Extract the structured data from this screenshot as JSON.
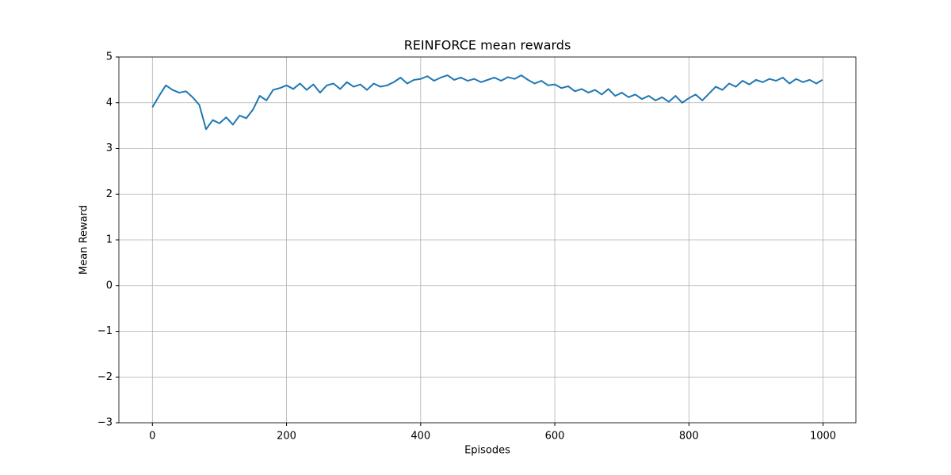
{
  "chart_data": {
    "type": "line",
    "title": "REINFORCE mean rewards",
    "xlabel": "Episodes",
    "ylabel": "Mean Reward",
    "x": [
      0,
      10,
      20,
      30,
      40,
      50,
      60,
      70,
      80,
      90,
      100,
      110,
      120,
      130,
      140,
      150,
      160,
      170,
      180,
      190,
      200,
      210,
      220,
      230,
      240,
      250,
      260,
      270,
      280,
      290,
      300,
      310,
      320,
      330,
      340,
      350,
      360,
      370,
      380,
      390,
      400,
      410,
      420,
      430,
      440,
      450,
      460,
      470,
      480,
      490,
      500,
      510,
      520,
      530,
      540,
      550,
      560,
      570,
      580,
      590,
      600,
      610,
      620,
      630,
      640,
      650,
      660,
      670,
      680,
      690,
      700,
      710,
      720,
      730,
      740,
      750,
      760,
      770,
      780,
      790,
      800,
      810,
      820,
      830,
      840,
      850,
      860,
      870,
      880,
      890,
      900,
      910,
      920,
      930,
      940,
      950,
      960,
      970,
      980,
      990,
      999
    ],
    "values": [
      3.9,
      4.15,
      4.38,
      4.28,
      4.22,
      4.25,
      4.12,
      3.95,
      3.42,
      3.62,
      3.55,
      3.68,
      3.52,
      3.72,
      3.66,
      3.85,
      4.15,
      4.05,
      4.28,
      4.32,
      4.38,
      4.3,
      4.42,
      4.28,
      4.4,
      4.22,
      4.38,
      4.42,
      4.3,
      4.45,
      4.35,
      4.4,
      4.28,
      4.42,
      4.35,
      4.38,
      4.45,
      4.55,
      4.42,
      4.5,
      4.52,
      4.58,
      4.48,
      4.55,
      4.6,
      4.5,
      4.55,
      4.48,
      4.52,
      4.45,
      4.5,
      4.55,
      4.48,
      4.56,
      4.52,
      4.6,
      4.5,
      4.42,
      4.48,
      4.38,
      4.4,
      4.32,
      4.36,
      4.25,
      4.3,
      4.22,
      4.28,
      4.18,
      4.3,
      4.15,
      4.22,
      4.12,
      4.18,
      4.08,
      4.15,
      4.05,
      4.12,
      4.02,
      4.15,
      4.0,
      4.1,
      4.18,
      4.05,
      4.2,
      4.35,
      4.28,
      4.42,
      4.35,
      4.48,
      4.4,
      4.5,
      4.45,
      4.52,
      4.48,
      4.55,
      4.42,
      4.52,
      4.45,
      4.5,
      4.42,
      4.5
    ],
    "color": "#1f77b4",
    "xlim": [
      -50,
      1049
    ],
    "ylim": [
      -3,
      5
    ],
    "xticks": [
      0,
      200,
      400,
      600,
      800,
      1000
    ],
    "yticks": [
      {
        "value": -3,
        "label": "−3"
      },
      {
        "value": -2,
        "label": "−2"
      },
      {
        "value": -1,
        "label": "−1"
      },
      0,
      1,
      2,
      3,
      4,
      5
    ],
    "grid": true
  }
}
